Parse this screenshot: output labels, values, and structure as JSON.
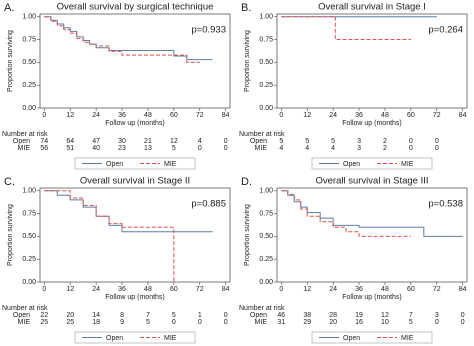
{
  "chart_data": [
    {
      "type": "line",
      "panel_label": "A.",
      "title": "Overall survival by surgical technique",
      "annotation": "p=0.933",
      "xlabel": "Follow up (months)",
      "ylabel": "Proportion surviving",
      "xlim": [
        -2,
        86
      ],
      "ylim": [
        0,
        1.03
      ],
      "xticks": [
        0,
        12,
        24,
        36,
        48,
        60,
        72,
        84
      ],
      "yticks": [
        {
          "value": 0,
          "label": "0.00"
        },
        {
          "value": 0.25,
          "label": "0.25"
        },
        {
          "value": 0.5,
          "label": "0.50"
        },
        {
          "value": 0.75,
          "label": "0.75"
        },
        {
          "value": 1,
          "label": "1.00"
        }
      ],
      "risk_title": "Number at risk",
      "risk": [
        {
          "name": "Open",
          "values": [
            74,
            64,
            47,
            30,
            21,
            12,
            4,
            0
          ]
        },
        {
          "name": "MIE",
          "values": [
            56,
            51,
            40,
            23,
            13,
            5,
            0,
            0
          ]
        }
      ],
      "series": [
        {
          "name": "Open",
          "color": "#5b7fa8",
          "dash": "solid",
          "x": [
            0,
            3,
            6,
            9,
            12,
            15,
            18,
            21,
            24,
            30,
            36,
            48,
            60,
            66,
            72,
            78
          ],
          "values": [
            1,
            0.96,
            0.92,
            0.88,
            0.84,
            0.78,
            0.74,
            0.7,
            0.66,
            0.63,
            0.63,
            0.63,
            0.57,
            0.53,
            0.53,
            0.53
          ]
        },
        {
          "name": "MIE",
          "color": "#d9534f",
          "dash": "dashed",
          "x": [
            0,
            3,
            6,
            9,
            12,
            15,
            18,
            21,
            24,
            30,
            36,
            48,
            60,
            66,
            72
          ],
          "values": [
            1,
            0.95,
            0.9,
            0.86,
            0.82,
            0.76,
            0.72,
            0.7,
            0.68,
            0.62,
            0.58,
            0.58,
            0.58,
            0.5,
            0.5
          ]
        }
      ]
    },
    {
      "type": "line",
      "panel_label": "B.",
      "title": "Overall survival in Stage I",
      "annotation": "p=0.264",
      "xlabel": "Follow up (months)",
      "ylabel": "Proportion surviving",
      "xlim": [
        -2,
        86
      ],
      "ylim": [
        0,
        1.03
      ],
      "xticks": [
        0,
        12,
        24,
        36,
        48,
        60,
        72,
        84
      ],
      "yticks": [
        {
          "value": 0,
          "label": "0.00"
        },
        {
          "value": 0.25,
          "label": "0.25"
        },
        {
          "value": 0.5,
          "label": "0.50"
        },
        {
          "value": 0.75,
          "label": "0.75"
        },
        {
          "value": 1,
          "label": "1.00"
        }
      ],
      "risk_title": "Number at risk",
      "risk": [
        {
          "name": "Open",
          "values": [
            5,
            5,
            5,
            3,
            2,
            0,
            0
          ]
        },
        {
          "name": "MIE",
          "values": [
            4,
            4,
            4,
            3,
            2,
            0,
            0
          ]
        }
      ],
      "series": [
        {
          "name": "Open",
          "color": "#5b7fa8",
          "dash": "solid",
          "x": [
            0,
            72
          ],
          "values": [
            1,
            1
          ]
        },
        {
          "name": "MIE",
          "color": "#d9534f",
          "dash": "dashed",
          "x": [
            0,
            25,
            60
          ],
          "values": [
            1,
            0.75,
            0.75
          ]
        }
      ]
    },
    {
      "type": "line",
      "panel_label": "C.",
      "title": "Overall survival in Stage II",
      "annotation": "p=0.885",
      "xlabel": "Follow up (months)",
      "ylabel": "Proportion surviving",
      "xlim": [
        -2,
        86
      ],
      "ylim": [
        0,
        1.03
      ],
      "xticks": [
        0,
        12,
        24,
        36,
        48,
        60,
        72,
        84
      ],
      "yticks": [
        {
          "value": 0,
          "label": "0.00"
        },
        {
          "value": 0.25,
          "label": "0.25"
        },
        {
          "value": 0.5,
          "label": "0.50"
        },
        {
          "value": 0.75,
          "label": "0.75"
        },
        {
          "value": 1,
          "label": "1.00"
        }
      ],
      "risk_title": "Number at risk",
      "risk": [
        {
          "name": "Open",
          "values": [
            22,
            20,
            14,
            8,
            7,
            5,
            1,
            0
          ]
        },
        {
          "name": "MIE",
          "values": [
            25,
            25,
            18,
            9,
            5,
            0,
            0,
            0
          ]
        }
      ],
      "series": [
        {
          "name": "Open",
          "color": "#5b7fa8",
          "dash": "solid",
          "x": [
            0,
            6,
            12,
            18,
            24,
            30,
            36,
            78
          ],
          "values": [
            1,
            0.95,
            0.9,
            0.82,
            0.72,
            0.62,
            0.55,
            0.55
          ]
        },
        {
          "name": "MIE",
          "color": "#d9534f",
          "dash": "dashed",
          "x": [
            0,
            6,
            12,
            18,
            24,
            30,
            36,
            60
          ],
          "values": [
            1,
            1,
            0.92,
            0.84,
            0.72,
            0.64,
            0.6,
            0
          ]
        }
      ]
    },
    {
      "type": "line",
      "panel_label": "D.",
      "title": "Overall survival in Stage III",
      "annotation": "p=0.538",
      "xlabel": "Follow up (months)",
      "ylabel": "Proportion surviving",
      "xlim": [
        -2,
        86
      ],
      "ylim": [
        0,
        1.03
      ],
      "xticks": [
        0,
        12,
        24,
        36,
        48,
        60,
        72,
        84
      ],
      "yticks": [
        {
          "value": 0,
          "label": "0.00"
        },
        {
          "value": 0.25,
          "label": "0.25"
        },
        {
          "value": 0.5,
          "label": "0.50"
        },
        {
          "value": 0.75,
          "label": "0.75"
        },
        {
          "value": 1,
          "label": "1.00"
        }
      ],
      "risk_title": "Number at risk",
      "risk": [
        {
          "name": "Open",
          "values": [
            46,
            38,
            28,
            19,
            12,
            7,
            3,
            0
          ]
        },
        {
          "name": "MIE",
          "values": [
            31,
            29,
            20,
            16,
            10,
            5,
            0,
            0
          ]
        }
      ],
      "series": [
        {
          "name": "Open",
          "color": "#5b7fa8",
          "dash": "solid",
          "x": [
            0,
            3,
            6,
            9,
            12,
            18,
            24,
            36,
            48,
            60,
            66,
            84
          ],
          "values": [
            1,
            0.95,
            0.88,
            0.82,
            0.76,
            0.7,
            0.62,
            0.6,
            0.6,
            0.6,
            0.5,
            0.5
          ]
        },
        {
          "name": "MIE",
          "color": "#d9534f",
          "dash": "dashed",
          "x": [
            0,
            3,
            6,
            9,
            12,
            18,
            24,
            30,
            36,
            48,
            60
          ],
          "values": [
            1,
            0.96,
            0.9,
            0.8,
            0.72,
            0.66,
            0.6,
            0.55,
            0.5,
            0.5,
            0.5
          ]
        }
      ]
    }
  ]
}
